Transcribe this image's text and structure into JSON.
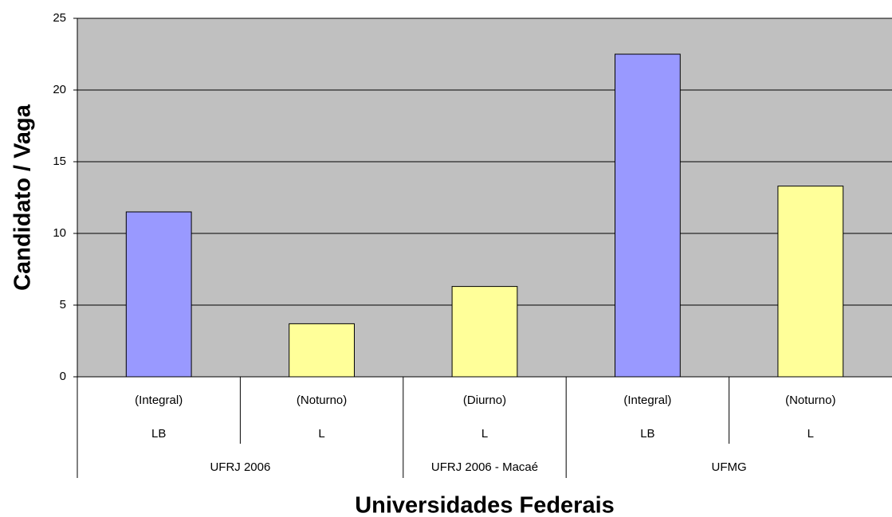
{
  "chart_data": {
    "type": "bar",
    "y_label": "Candidato / Vaga",
    "x_label": "Universidades Federais",
    "categories": [
      "(Integral)",
      "(Noturno)",
      "(Diurno)",
      "(Integral)",
      "(Noturno)"
    ],
    "categories_level2": [
      "LB",
      "L",
      "L",
      "LB",
      "L"
    ],
    "categories_level3": [
      "UFRJ 2006",
      null,
      "UFRJ 2006 - Macaé",
      "UFMG",
      null
    ],
    "values": [
      11.5,
      3.7,
      6.3,
      22.5,
      13.3
    ],
    "colors": [
      "#9999ff",
      "#ffff99",
      "#ffff99",
      "#9999ff",
      "#ffff99"
    ],
    "ylim": [
      0,
      25
    ],
    "yticks": [
      0,
      5,
      10,
      15,
      20,
      25
    ],
    "grid": true
  }
}
